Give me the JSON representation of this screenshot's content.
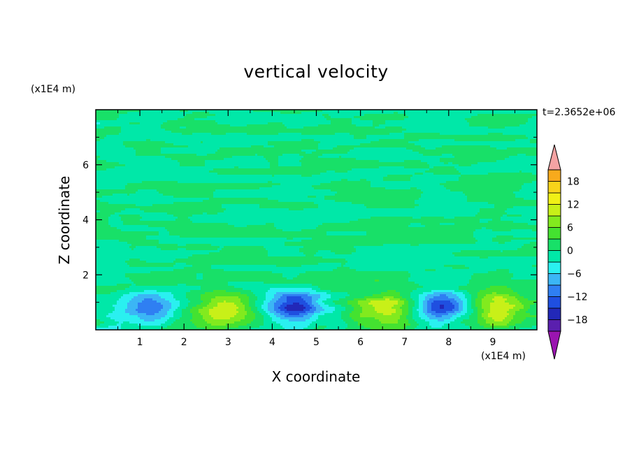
{
  "chart_data": {
    "type": "heatmap",
    "title": "vertical velocity",
    "xlabel": "X coordinate",
    "ylabel": "Z coordinate",
    "x_unit_label": "(x1E4 m)",
    "y_unit_label": "(x1E4 m)",
    "time_label": "t=2.3652e+06",
    "xlim": [
      0,
      10
    ],
    "ylim": [
      0,
      8
    ],
    "x_ticks": [
      1,
      2,
      3,
      4,
      5,
      6,
      7,
      8,
      9
    ],
    "y_ticks": [
      2,
      4,
      6
    ],
    "colorbar": {
      "tick_labels": [
        "18",
        "12",
        "6",
        "0",
        "−6",
        "−12",
        "−18"
      ],
      "tick_values": [
        18,
        12,
        6,
        0,
        -6,
        -12,
        -18
      ],
      "range": [
        -21,
        21
      ],
      "extend": "both",
      "colors": [
        "#9a14b0",
        "#5a1fae",
        "#2228b8",
        "#1f4fe0",
        "#2f7ff2",
        "#3bb6f5",
        "#2af0f0",
        "#00e8a8",
        "#18e068",
        "#44e230",
        "#82ea1e",
        "#c8f018",
        "#f0f016",
        "#f8d41a",
        "#f8aa1c",
        "#f88a14",
        "#f55a14",
        "#ee2a18",
        "#f5a3a3"
      ]
    },
    "features": [
      {
        "type": "updraft",
        "x": 2.9,
        "z": 0.8,
        "peak": 10
      },
      {
        "type": "updraft",
        "x": 6.55,
        "z": 0.85,
        "peak": 11
      },
      {
        "type": "updraft",
        "x": 9.1,
        "z": 0.75,
        "peak": 11
      },
      {
        "type": "downdraft",
        "x": 1.2,
        "z": 0.8,
        "peak": -11
      },
      {
        "type": "downdraft",
        "x": 4.5,
        "z": 0.8,
        "peak": -15
      },
      {
        "type": "downdraft",
        "x": 7.9,
        "z": 0.8,
        "peak": -13
      }
    ]
  }
}
